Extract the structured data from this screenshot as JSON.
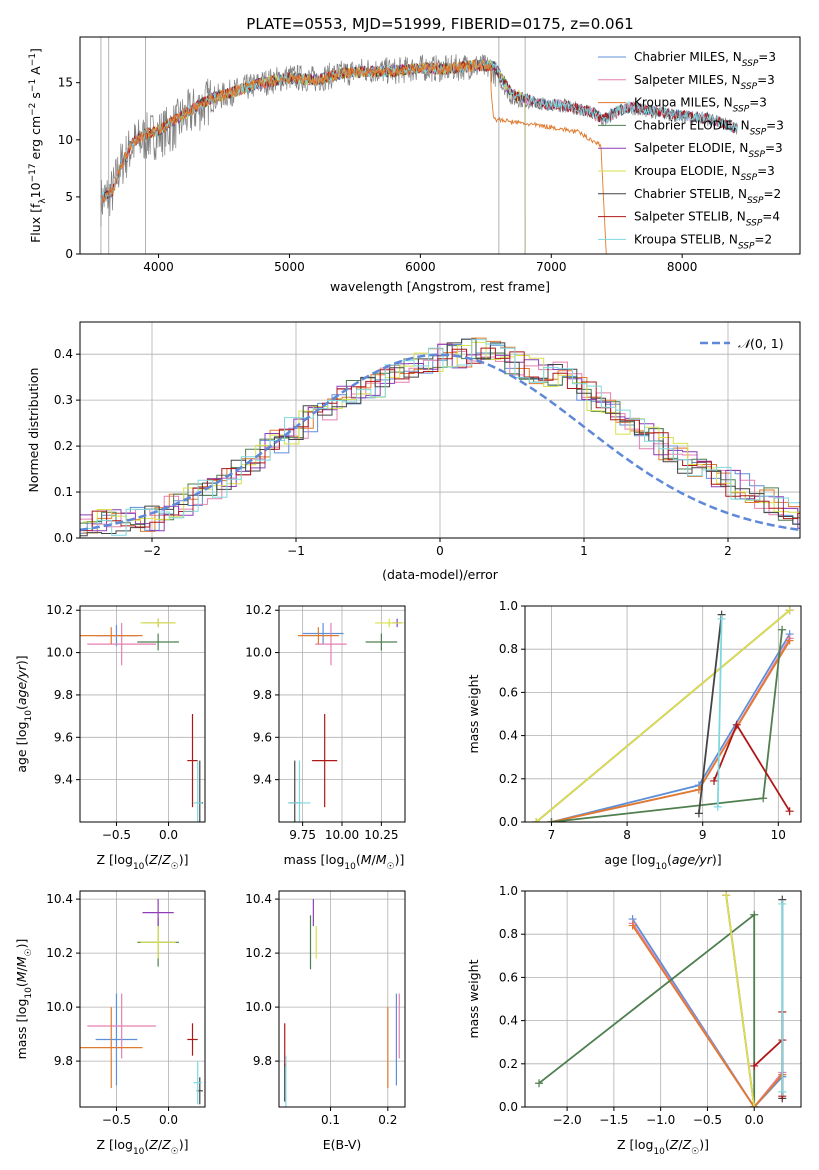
{
  "figure_title": "PLATE=0553, MJD=51999, FIBERID=0175, z=0.061",
  "colors": {
    "Chabrier MILES": "#5f8fd6",
    "Salpeter MILES": "#e77fb0",
    "Kroupa MILES": "#e07a2e",
    "Chabrier ELODIE": "#4f7f4f",
    "Salpeter ELODIE": "#8e3fb8",
    "Kroupa ELODIE": "#d8e04a",
    "Chabrier STELIB": "#444444",
    "Salpeter STELIB": "#b01818",
    "Kroupa STELIB": "#7fd8e0",
    "data": "#808080",
    "normal": "#5f88d8"
  },
  "chart_data": [
    {
      "type": "line",
      "panel": "spectrum",
      "xlabel": "wavelength [Angstrom, rest frame]",
      "ylabel": "Flux [f_λ10^-17 erg cm^-2 s^-1 A^-1]",
      "xlim": [
        3400,
        8900
      ],
      "ylim": [
        0,
        19
      ],
      "xticks": [
        4000,
        5000,
        6000,
        7000,
        8000
      ],
      "yticks": [
        0,
        5,
        10,
        15
      ],
      "grid": false,
      "legend_position": "top-right",
      "legend": [
        {
          "series": "Chabrier MILES",
          "imf": "Chabrier",
          "lib": "MILES",
          "n": "3"
        },
        {
          "series": "Salpeter MILES",
          "imf": "Salpeter",
          "lib": "MILES",
          "n": "3"
        },
        {
          "series": "Kroupa MILES",
          "imf": "Kroupa",
          "lib": "MILES",
          "n": "3"
        },
        {
          "series": "Chabrier ELODIE",
          "imf": "Chabrier",
          "lib": "ELODIE",
          "n": "3"
        },
        {
          "series": "Salpeter ELODIE",
          "imf": "Salpeter",
          "lib": "ELODIE",
          "n": "3"
        },
        {
          "series": "Kroupa ELODIE",
          "imf": "Kroupa",
          "lib": "ELODIE",
          "n": "3"
        },
        {
          "series": "Chabrier STELIB",
          "imf": "Chabrier",
          "lib": "STELIB",
          "n": "2"
        },
        {
          "series": "Salpeter STELIB",
          "imf": "Salpeter",
          "lib": "STELIB",
          "n": "4"
        },
        {
          "series": "Kroupa STELIB",
          "imf": "Kroupa",
          "lib": "STELIB",
          "n": "2"
        }
      ],
      "data_continuum": [
        [
          3550,
          4.5
        ],
        [
          3650,
          5.5
        ],
        [
          3700,
          7.5
        ],
        [
          3800,
          9.5
        ],
        [
          3900,
          10.2
        ],
        [
          4000,
          10.5
        ],
        [
          4100,
          11
        ],
        [
          4200,
          12
        ],
        [
          4400,
          13.5
        ],
        [
          4600,
          14.3
        ],
        [
          4800,
          15
        ],
        [
          5000,
          15.5
        ],
        [
          5200,
          15.3
        ],
        [
          5400,
          15.8
        ],
        [
          5600,
          16.1
        ],
        [
          5800,
          16
        ],
        [
          6000,
          16.3
        ],
        [
          6200,
          16.2
        ],
        [
          6400,
          16.5
        ],
        [
          6550,
          16.2
        ],
        [
          6700,
          13.5
        ],
        [
          6900,
          13.2
        ],
        [
          7100,
          13
        ],
        [
          7300,
          12.5
        ],
        [
          7400,
          11.7
        ],
        [
          7500,
          12.4
        ],
        [
          7600,
          12.8
        ],
        [
          7800,
          12.4
        ],
        [
          8000,
          12
        ],
        [
          8200,
          11.8
        ],
        [
          8350,
          11.3
        ],
        [
          8400,
          11
        ]
      ],
      "model_continuum": [
        [
          3560,
          4.8
        ],
        [
          3650,
          5.5
        ],
        [
          3700,
          7.4
        ],
        [
          3800,
          9.8
        ],
        [
          3900,
          10.5
        ],
        [
          4000,
          10.8
        ],
        [
          4200,
          12.3
        ],
        [
          4400,
          13.6
        ],
        [
          4600,
          14.3
        ],
        [
          4800,
          15
        ],
        [
          5000,
          15.4
        ],
        [
          5200,
          15.2
        ],
        [
          5400,
          15.8
        ],
        [
          5600,
          16
        ],
        [
          5800,
          16
        ],
        [
          6000,
          16.3
        ],
        [
          6200,
          16.2
        ],
        [
          6400,
          16.5
        ],
        [
          6560,
          16.5
        ],
        [
          6700,
          14
        ],
        [
          6900,
          13.2
        ],
        [
          7100,
          13
        ],
        [
          7300,
          12.4
        ],
        [
          7400,
          11.8
        ],
        [
          7500,
          12.5
        ],
        [
          7600,
          12.9
        ],
        [
          7800,
          12.5
        ],
        [
          8000,
          12.1
        ],
        [
          8200,
          11.9
        ],
        [
          8400,
          11
        ]
      ],
      "kroupa_miles_red_end": [
        [
          6540,
          14.5
        ],
        [
          6560,
          11.8
        ],
        [
          7000,
          11.1
        ],
        [
          7200,
          10.7
        ],
        [
          7380,
          9.5
        ],
        [
          7420,
          0
        ]
      ],
      "kroupa_elodie_drop_nm": [
        6800,
        0
      ],
      "data_gaps_angstrom": [
        3560,
        3620,
        3900,
        6600,
        6800
      ]
    },
    {
      "type": "bar",
      "panel": "residual-histogram",
      "xlabel": "(data-model)/error",
      "ylabel": "Normed distribution",
      "xlim": [
        -2.5,
        2.5
      ],
      "ylim": [
        0,
        0.47
      ],
      "xticks": [
        -2,
        -1,
        0,
        1,
        2
      ],
      "yticks": [
        0.0,
        0.1,
        0.2,
        0.3,
        0.4
      ],
      "grid": true,
      "legend_position": "top-right",
      "legend": "N(0,1)",
      "bin_width": 0.1,
      "series_envelope": [
        [
          -2.5,
          0.03
        ],
        [
          -2.0,
          0.04
        ],
        [
          -1.5,
          0.12
        ],
        [
          -1.2,
          0.19
        ],
        [
          -1.0,
          0.24
        ],
        [
          -0.7,
          0.3
        ],
        [
          -0.4,
          0.34
        ],
        [
          0.0,
          0.39
        ],
        [
          0.3,
          0.41
        ],
        [
          0.6,
          0.37
        ],
        [
          0.9,
          0.35
        ],
        [
          1.2,
          0.27
        ],
        [
          1.5,
          0.21
        ],
        [
          1.8,
          0.15
        ],
        [
          2.1,
          0.11
        ],
        [
          2.5,
          0.05
        ]
      ]
    },
    {
      "type": "scatter",
      "panel": "age-vs-Z",
      "xlabel": "Z [log10(Z/Z☉)]",
      "ylabel": "age  [log10(age/yr)]",
      "xlim": [
        -0.85,
        0.35
      ],
      "ylim": [
        9.2,
        10.22
      ],
      "xticks": [
        -0.5,
        0.0
      ],
      "yticks": [
        9.4,
        9.6,
        9.8,
        10.0,
        10.2
      ],
      "grid": true,
      "points": [
        {
          "series": "Chabrier MILES",
          "x": -0.5,
          "y": 10.08,
          "xerr": 0.2,
          "yerr": 0.05
        },
        {
          "series": "Salpeter MILES",
          "x": -0.45,
          "y": 10.04,
          "xerr": 0.33,
          "yerr": 0.1
        },
        {
          "series": "Kroupa MILES",
          "x": -0.55,
          "y": 10.08,
          "xerr": 0.3,
          "yerr": 0.04
        },
        {
          "series": "Chabrier ELODIE",
          "x": -0.1,
          "y": 10.05,
          "xerr": 0.2,
          "yerr": 0.04
        },
        {
          "series": "Salpeter ELODIE",
          "x": -0.1,
          "y": 10.14,
          "xerr": 0.15,
          "yerr": 0.02
        },
        {
          "series": "Kroupa ELODIE",
          "x": -0.1,
          "y": 10.14,
          "xerr": 0.17,
          "yerr": 0.02
        },
        {
          "series": "Chabrier STELIB",
          "x": 0.3,
          "y": 9.29,
          "xerr": 0.03,
          "yerr": 0.2
        },
        {
          "series": "Salpeter STELIB",
          "x": 0.23,
          "y": 9.49,
          "xerr": 0.05,
          "yerr": 0.22
        },
        {
          "series": "Kroupa STELIB",
          "x": 0.28,
          "y": 9.29,
          "xerr": 0.04,
          "yerr": 0.2
        }
      ]
    },
    {
      "type": "scatter",
      "panel": "age-vs-mass",
      "xlabel": "mass [log10(M/M☉)]",
      "ylabel": "",
      "xlim": [
        9.6,
        10.4
      ],
      "ylim": [
        9.2,
        10.22
      ],
      "xticks": [
        9.75,
        10.0,
        10.25
      ],
      "yticks": [
        9.4,
        9.6,
        9.8,
        10.0,
        10.2
      ],
      "grid": true,
      "points": [
        {
          "series": "Chabrier MILES",
          "x": 9.88,
          "y": 10.09,
          "xerr": 0.13,
          "yerr": 0.05
        },
        {
          "series": "Salpeter MILES",
          "x": 9.93,
          "y": 10.04,
          "xerr": 0.1,
          "yerr": 0.1
        },
        {
          "series": "Kroupa MILES",
          "x": 9.85,
          "y": 10.08,
          "xerr": 0.13,
          "yerr": 0.04
        },
        {
          "series": "Chabrier ELODIE",
          "x": 10.25,
          "y": 10.05,
          "xerr": 0.1,
          "yerr": 0.04
        },
        {
          "series": "Salpeter ELODIE",
          "x": 10.35,
          "y": 10.14,
          "xerr": 0.03,
          "yerr": 0.02
        },
        {
          "series": "Kroupa ELODIE",
          "x": 10.3,
          "y": 10.14,
          "xerr": 0.09,
          "yerr": 0.02
        },
        {
          "series": "Chabrier STELIB",
          "x": 9.7,
          "y": 9.29,
          "xerr": 0.04,
          "yerr": 0.2
        },
        {
          "series": "Salpeter STELIB",
          "x": 9.89,
          "y": 9.49,
          "xerr": 0.08,
          "yerr": 0.22
        },
        {
          "series": "Kroupa STELIB",
          "x": 9.73,
          "y": 9.29,
          "xerr": 0.07,
          "yerr": 0.2
        }
      ]
    },
    {
      "type": "line",
      "panel": "mass-weight-vs-age",
      "xlabel": "age  [log10(age/yr)]",
      "ylabel": "mass weight",
      "xlim": [
        6.65,
        10.3
      ],
      "ylim": [
        0,
        1.0
      ],
      "xticks": [
        7,
        8,
        9,
        10
      ],
      "yticks": [
        0.0,
        0.2,
        0.4,
        0.6,
        0.8,
        1.0
      ],
      "grid": true,
      "series": [
        {
          "name": "Chabrier MILES",
          "x": [
            7.0,
            8.95,
            10.15
          ],
          "y": [
            0.0,
            0.17,
            0.87
          ]
        },
        {
          "name": "Salpeter MILES",
          "x": [
            7.0,
            8.95,
            10.15
          ],
          "y": [
            0.0,
            0.15,
            0.85
          ]
        },
        {
          "name": "Kroupa MILES",
          "x": [
            7.0,
            8.95,
            10.15
          ],
          "y": [
            0.0,
            0.15,
            0.84
          ]
        },
        {
          "name": "Chabrier ELODIE",
          "x": [
            7.0,
            9.8,
            10.05
          ],
          "y": [
            0.0,
            0.11,
            0.89
          ]
        },
        {
          "name": "Salpeter ELODIE",
          "x": [
            6.8,
            10.15
          ],
          "y": [
            0.0,
            0.98
          ]
        },
        {
          "name": "Kroupa ELODIE",
          "x": [
            6.8,
            10.15
          ],
          "y": [
            0.0,
            0.98
          ]
        },
        {
          "name": "Chabrier STELIB",
          "x": [
            8.95,
            9.25
          ],
          "y": [
            0.04,
            0.96
          ]
        },
        {
          "name": "Salpeter STELIB",
          "x": [
            9.15,
            9.45,
            10.15
          ],
          "y": [
            0.19,
            0.45,
            0.05
          ]
        },
        {
          "name": "Kroupa STELIB",
          "x": [
            9.2,
            9.25
          ],
          "y": [
            0.07,
            0.94
          ]
        }
      ]
    },
    {
      "type": "scatter",
      "panel": "mass-vs-Z",
      "xlabel": "Z [log10(Z/Z☉)]",
      "ylabel": "mass [log10(M/M☉)]",
      "xlim": [
        -0.85,
        0.35
      ],
      "ylim": [
        9.63,
        10.43
      ],
      "xticks": [
        -0.5,
        0.0
      ],
      "yticks": [
        9.8,
        10.0,
        10.2,
        10.4
      ],
      "grid": true,
      "points": [
        {
          "series": "Chabrier MILES",
          "x": -0.5,
          "y": 9.88,
          "xerr": 0.2,
          "yerr": 0.17
        },
        {
          "series": "Salpeter MILES",
          "x": -0.45,
          "y": 9.93,
          "xerr": 0.33,
          "yerr": 0.12
        },
        {
          "series": "Kroupa MILES",
          "x": -0.55,
          "y": 9.85,
          "xerr": 0.3,
          "yerr": 0.15
        },
        {
          "series": "Chabrier ELODIE",
          "x": -0.1,
          "y": 10.24,
          "xerr": 0.2,
          "yerr": 0.09
        },
        {
          "series": "Salpeter ELODIE",
          "x": -0.1,
          "y": 10.35,
          "xerr": 0.15,
          "yerr": 0.05
        },
        {
          "series": "Kroupa ELODIE",
          "x": -0.1,
          "y": 10.24,
          "xerr": 0.17,
          "yerr": 0.06
        },
        {
          "series": "Chabrier STELIB",
          "x": 0.3,
          "y": 9.69,
          "xerr": 0.03,
          "yerr": 0.05
        },
        {
          "series": "Salpeter STELIB",
          "x": 0.23,
          "y": 9.88,
          "xerr": 0.05,
          "yerr": 0.06
        },
        {
          "series": "Kroupa STELIB",
          "x": 0.28,
          "y": 9.72,
          "xerr": 0.04,
          "yerr": 0.08
        }
      ]
    },
    {
      "type": "scatter",
      "panel": "mass-vs-EBV",
      "xlabel": "E(B-V)",
      "ylabel": "",
      "xlim": [
        0.01,
        0.23
      ],
      "ylim": [
        9.63,
        10.43
      ],
      "xticks": [
        0.1,
        0.2
      ],
      "yticks": [
        9.8,
        10.0,
        10.2,
        10.4
      ],
      "grid": true,
      "points": [
        {
          "series": "Chabrier MILES",
          "x": 0.215,
          "y": 9.88,
          "yerr": 0.17
        },
        {
          "series": "Salpeter MILES",
          "x": 0.22,
          "y": 9.93,
          "yerr": 0.12
        },
        {
          "series": "Kroupa MILES",
          "x": 0.2,
          "y": 9.85,
          "yerr": 0.15
        },
        {
          "series": "Chabrier ELODIE",
          "x": 0.065,
          "y": 10.24,
          "yerr": 0.1
        },
        {
          "series": "Salpeter ELODIE",
          "x": 0.07,
          "y": 10.35,
          "yerr": 0.05
        },
        {
          "series": "Kroupa ELODIE",
          "x": 0.075,
          "y": 10.24,
          "yerr": 0.06
        },
        {
          "series": "Chabrier STELIB",
          "x": 0.02,
          "y": 9.72,
          "yerr": 0.07
        },
        {
          "series": "Salpeter STELIB",
          "x": 0.02,
          "y": 9.86,
          "yerr": 0.08
        },
        {
          "series": "Kroupa STELIB",
          "x": 0.022,
          "y": 9.72,
          "yerr": 0.1
        }
      ]
    },
    {
      "type": "line",
      "panel": "mass-weight-vs-Z",
      "xlabel": "Z [log10(Z/Z☉)]",
      "ylabel": "mass weight",
      "xlim": [
        -2.45,
        0.5
      ],
      "ylim": [
        0,
        1.0
      ],
      "xticks": [
        -2.0,
        -1.5,
        -1.0,
        -0.5,
        0.0
      ],
      "yticks": [
        0.0,
        0.2,
        0.4,
        0.6,
        0.8,
        1.0
      ],
      "grid": true,
      "series": [
        {
          "name": "Chabrier MILES",
          "x": [
            -1.3,
            0.0,
            0.3
          ],
          "y": [
            0.87,
            0.0,
            0.14
          ]
        },
        {
          "name": "Salpeter MILES",
          "x": [
            -1.3,
            0.0,
            0.3
          ],
          "y": [
            0.85,
            0.0,
            0.16
          ]
        },
        {
          "name": "Kroupa MILES",
          "x": [
            -1.3,
            0.0,
            0.3
          ],
          "y": [
            0.84,
            0.0,
            0.15
          ]
        },
        {
          "name": "Chabrier ELODIE",
          "x": [
            -2.3,
            0.0,
            0.0
          ],
          "y": [
            0.11,
            0.89,
            0.0
          ]
        },
        {
          "name": "Salpeter ELODIE",
          "x": [
            -0.3,
            0.0
          ],
          "y": [
            0.98,
            0.0
          ]
        },
        {
          "name": "Kroupa ELODIE",
          "x": [
            -0.3,
            0.0
          ],
          "y": [
            0.98,
            0.0
          ]
        },
        {
          "name": "Chabrier STELIB",
          "x": [
            0.3,
            0.3
          ],
          "y": [
            0.04,
            0.96
          ]
        },
        {
          "name": "Salpeter STELIB",
          "x": [
            0.0,
            0.3,
            0.3,
            0.3
          ],
          "y": [
            0.19,
            0.31,
            0.44,
            0.05
          ]
        },
        {
          "name": "Kroupa STELIB",
          "x": [
            0.3,
            0.3
          ],
          "y": [
            0.07,
            0.94
          ]
        }
      ]
    }
  ]
}
